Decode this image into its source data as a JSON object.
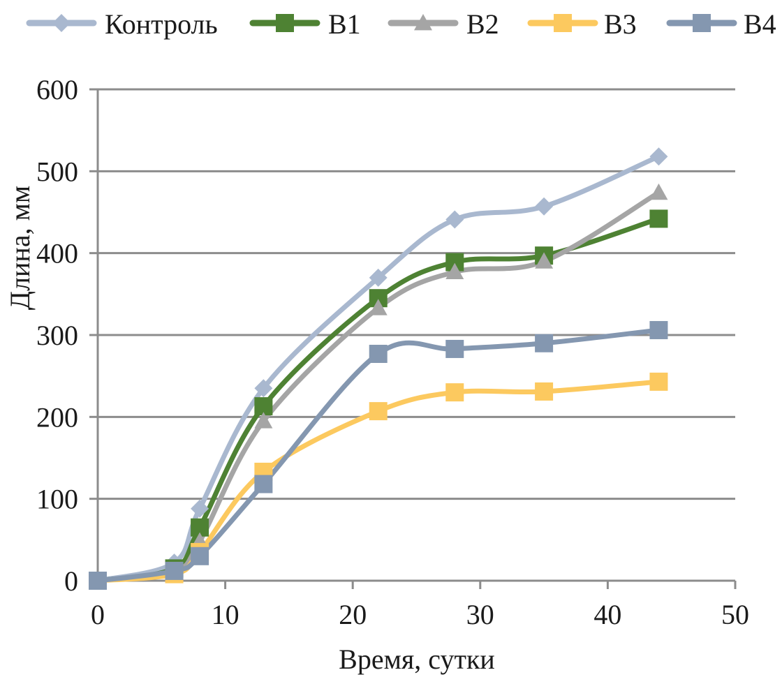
{
  "chart_data": {
    "type": "line",
    "title": "",
    "xlabel": "Время, сутки",
    "ylabel": "Длина, мм",
    "xlim": [
      0,
      50
    ],
    "ylim": [
      0,
      600
    ],
    "xticks": [
      0,
      10,
      20,
      30,
      40,
      50
    ],
    "yticks": [
      0,
      100,
      200,
      300,
      400,
      500,
      600
    ],
    "grid": "horizontal",
    "legend_position": "top",
    "smooth": true,
    "x": [
      0,
      6,
      8,
      13,
      22,
      28,
      35,
      44
    ],
    "series": [
      {
        "name": "Контроль",
        "color": "#a9b8cf",
        "marker": "diamond",
        "values": [
          0,
          22,
          88,
          235,
          370,
          441,
          457,
          518
        ]
      },
      {
        "name": "В1",
        "color": "#4e8233",
        "marker": "square",
        "values": [
          0,
          15,
          65,
          213,
          345,
          389,
          397,
          442
        ]
      },
      {
        "name": "В2",
        "color": "#a5a5a5",
        "marker": "triangle",
        "values": [
          0,
          12,
          48,
          195,
          333,
          377,
          390,
          474
        ]
      },
      {
        "name": "В3",
        "color": "#fcc95f",
        "marker": "square",
        "values": [
          0,
          8,
          35,
          133,
          207,
          230,
          231,
          243
        ]
      },
      {
        "name": "В4",
        "color": "#8497b0",
        "marker": "square",
        "values": [
          0,
          12,
          30,
          118,
          277,
          283,
          290,
          306
        ]
      }
    ]
  }
}
